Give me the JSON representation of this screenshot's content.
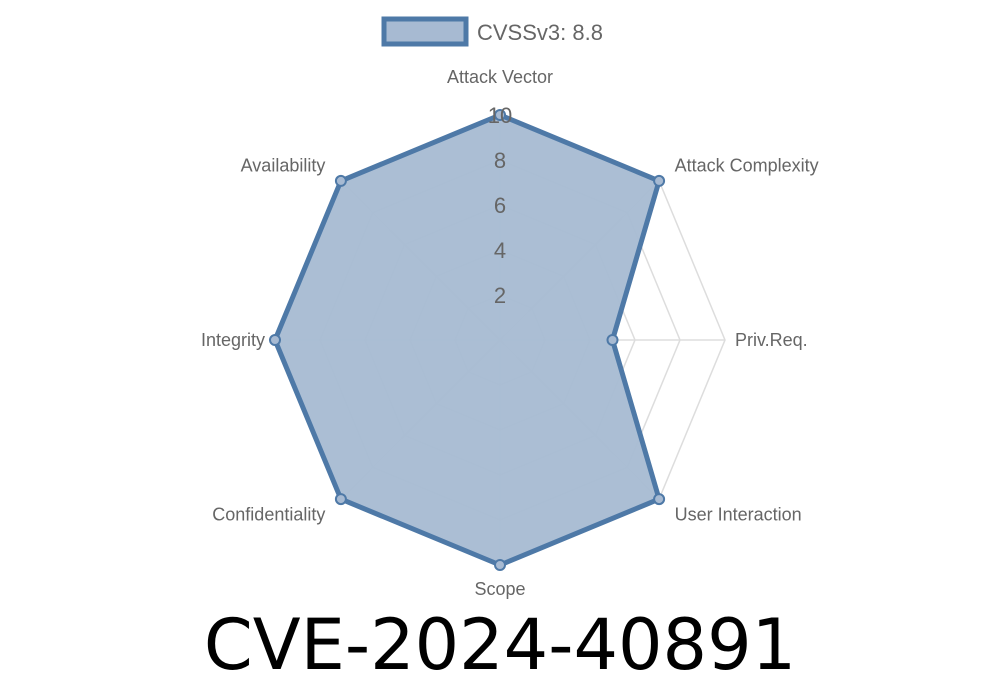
{
  "chart_data": {
    "type": "radar",
    "axes": [
      "Attack Vector",
      "Attack Complexity",
      "Priv.Req.",
      "User Interaction",
      "Scope",
      "Confidentiality",
      "Integrity",
      "Availability"
    ],
    "series": [
      {
        "name": "CVSSv3: 8.8",
        "values": [
          10,
          10,
          5,
          10,
          10,
          10,
          10,
          10
        ]
      }
    ],
    "rlim": [
      0,
      10
    ],
    "ticks": [
      2,
      4,
      6,
      8,
      10
    ],
    "legend_position": "top",
    "grid": true,
    "colors": {
      "fill": "#a7bad2",
      "stroke": "#4e79a7",
      "grid": "#dddddd"
    }
  },
  "title": "CVE-2024-40891"
}
